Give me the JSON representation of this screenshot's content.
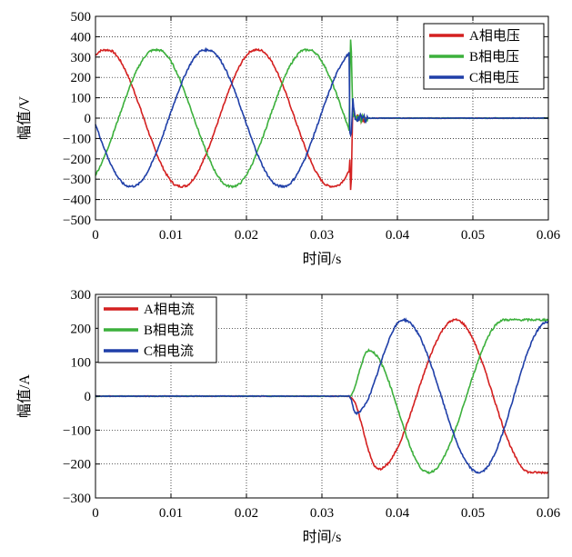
{
  "colors": {
    "A": "#d42020",
    "B": "#3cb03c",
    "C": "#1f3fa8"
  },
  "chart_data": [
    {
      "type": "line",
      "title": "",
      "xlabel": "时间/s",
      "ylabel": "幅值/V",
      "xlim": [
        0,
        0.06
      ],
      "ylim": [
        -500,
        500
      ],
      "xticks": [
        0,
        0.01,
        0.02,
        0.03,
        0.04,
        0.05,
        0.06
      ],
      "xtick_labels": [
        "0",
        "0.01",
        "0.02",
        "0.03",
        "0.04",
        "0.05",
        "0.06"
      ],
      "yticks": [
        -500,
        -400,
        -300,
        -200,
        -100,
        0,
        100,
        200,
        300,
        400,
        500
      ],
      "ytick_labels": [
        "−500",
        "−400",
        "−300",
        "−200",
        "−100",
        "0",
        "100",
        "200",
        "300",
        "400",
        "500"
      ],
      "grid": true,
      "legend_position": "top-right",
      "series": [
        {
          "name": "A相电压",
          "color": "#d42020",
          "amplitude": 340,
          "phase_deg": -25,
          "active_range": [
            0,
            0.0336
          ],
          "transient_extremes": [
            -440,
            100
          ],
          "after_value": 0
        },
        {
          "name": "B相电压",
          "color": "#3cb03c",
          "amplitude": 340,
          "phase_deg": -145,
          "active_range": [
            0,
            0.0336
          ],
          "transient_extremes": [
            450,
            40
          ],
          "after_value": 0
        },
        {
          "name": "C相电压",
          "color": "#1f3fa8",
          "amplitude": 340,
          "phase_deg": 95,
          "active_range": [
            0,
            0.0336
          ],
          "transient_extremes": [
            -120,
            130
          ],
          "after_value": 0
        }
      ]
    },
    {
      "type": "line",
      "title": "",
      "xlabel": "时间/s",
      "ylabel": "幅值/A",
      "xlim": [
        0,
        0.06
      ],
      "ylim": [
        -300,
        300
      ],
      "xticks": [
        0,
        0.01,
        0.02,
        0.03,
        0.04,
        0.05,
        0.06
      ],
      "xtick_labels": [
        "0",
        "0.01",
        "0.02",
        "0.03",
        "0.04",
        "0.05",
        "0.06"
      ],
      "yticks": [
        -300,
        -200,
        -100,
        0,
        100,
        200,
        300
      ],
      "ytick_labels": [
        "−300",
        "−200",
        "−100",
        "0",
        "100",
        "200",
        "300"
      ],
      "grid": true,
      "legend_position": "top-left",
      "series": [
        {
          "name": "A相电流",
          "color": "#d42020",
          "amplitude": 225,
          "zero_until": 0.0336,
          "peaks": [
            [
              0.0375,
              -215
            ],
            [
              0.0477,
              225
            ],
            [
              0.0577,
              -225
            ]
          ]
        },
        {
          "name": "B相电流",
          "color": "#3cb03c",
          "amplitude": 225,
          "zero_until": 0.0336,
          "peaks": [
            [
              0.0362,
              135
            ],
            [
              0.0441,
              -225
            ],
            [
              0.0542,
              225
            ]
          ]
        },
        {
          "name": "C相电流",
          "color": "#1f3fa8",
          "amplitude": 225,
          "zero_until": 0.0336,
          "peaks": [
            [
              0.0345,
              -50
            ],
            [
              0.0408,
              225
            ],
            [
              0.0508,
              -225
            ],
            [
              0.06,
              220
            ]
          ]
        }
      ]
    }
  ]
}
